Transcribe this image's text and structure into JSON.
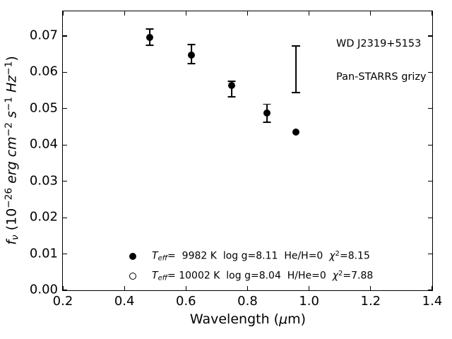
{
  "figure": {
    "background": "#ffffff",
    "ink": "#000000",
    "annotation": {
      "line1": "WD J2319+5153",
      "line2": "Pan-STARRS grizy"
    },
    "x_axis": {
      "label_parts": [
        {
          "t": "Wavelength (",
          "style": "r"
        },
        {
          "t": "μ",
          "style": "i"
        },
        {
          "t": "m)",
          "style": "r"
        }
      ],
      "tick_labels": [
        "0.2",
        "0.4",
        "0.6",
        "0.8",
        "1.0",
        "1.2",
        "1.4"
      ]
    },
    "y_axis": {
      "label_parts": [
        {
          "t": "f",
          "style": "i"
        },
        {
          "t": "ν",
          "style": "isub"
        },
        {
          "t": " (10",
          "style": "r"
        },
        {
          "t": "−26",
          "style": "sup"
        },
        {
          "t": " ",
          "style": "r"
        },
        {
          "t": "erg cm",
          "style": "i"
        },
        {
          "t": "−2",
          "style": "sup"
        },
        {
          "t": " ",
          "style": "r"
        },
        {
          "t": "s",
          "style": "i"
        },
        {
          "t": "−1",
          "style": "sup"
        },
        {
          "t": " ",
          "style": "r"
        },
        {
          "t": "Hz",
          "style": "i"
        },
        {
          "t": "−1",
          "style": "sup"
        },
        {
          "t": ")",
          "style": "r"
        }
      ],
      "tick_labels": [
        "0.00",
        "0.01",
        "0.02",
        "0.03",
        "0.04",
        "0.05",
        "0.06",
        "0.07"
      ]
    },
    "legend": {
      "entries": [
        {
          "marker": "filled-circle",
          "parts": [
            {
              "t": "T",
              "style": "i"
            },
            {
              "t": "eff",
              "style": "isub"
            },
            {
              "t": "=  9982 K  log g=8.11  He/H=0  ",
              "style": "r"
            },
            {
              "t": "χ",
              "style": "i"
            },
            {
              "t": "2",
              "style": "sup"
            },
            {
              "t": "=8.15",
              "style": "r"
            }
          ]
        },
        {
          "marker": "open-circle",
          "parts": [
            {
              "t": "T",
              "style": "i"
            },
            {
              "t": "eff",
              "style": "isub"
            },
            {
              "t": "= 10002 K  log g=8.04  H/He=0  ",
              "style": "r"
            },
            {
              "t": "χ",
              "style": "i"
            },
            {
              "t": "2",
              "style": "sup"
            },
            {
              "t": "=7.88",
              "style": "r"
            }
          ]
        }
      ]
    }
  },
  "chart_data": {
    "type": "scatter",
    "title": "",
    "xlabel": "Wavelength (μm)",
    "ylabel": "fν (10−26 erg cm−2 s−1 Hz−1)",
    "xlim": [
      0.2,
      1.4
    ],
    "ylim": [
      0.0,
      0.0768
    ],
    "grid": false,
    "legend_position": "lower-left-inside",
    "x_ticks": [
      0.2,
      0.4,
      0.6,
      0.8,
      1.0,
      1.2,
      1.4
    ],
    "y_ticks": [
      0.0,
      0.01,
      0.02,
      0.03,
      0.04,
      0.05,
      0.06,
      0.07
    ],
    "annotations": [
      "WD J2319+5153",
      "Pan-STARRS grizy"
    ],
    "series": [
      {
        "name": "Teff= 9982 K  log g=8.11  He/H=0  chi2=8.15",
        "marker": "filled-circle",
        "points": [
          {
            "x": 0.483,
            "y": 0.0696,
            "err_lo": 0.0675,
            "err_hi": 0.0719
          },
          {
            "x": 0.617,
            "y": 0.0647,
            "err_lo": 0.0624,
            "err_hi": 0.0676
          },
          {
            "x": 0.749,
            "y": 0.0563,
            "err_lo": 0.0533,
            "err_hi": 0.0575
          },
          {
            "x": 0.864,
            "y": 0.0488,
            "err_lo": 0.0463,
            "err_hi": 0.0512
          },
          {
            "x": 0.957,
            "y": 0.0436,
            "err_lo": null,
            "err_hi": null
          }
        ]
      },
      {
        "name": "Teff= 10002 K  log g=8.04  H/He=0  chi2=7.88",
        "marker": "open-circle",
        "points": []
      }
    ],
    "lone_errorbar": {
      "x": 0.957,
      "err_lo": 0.0544,
      "err_hi": 0.0673
    }
  }
}
